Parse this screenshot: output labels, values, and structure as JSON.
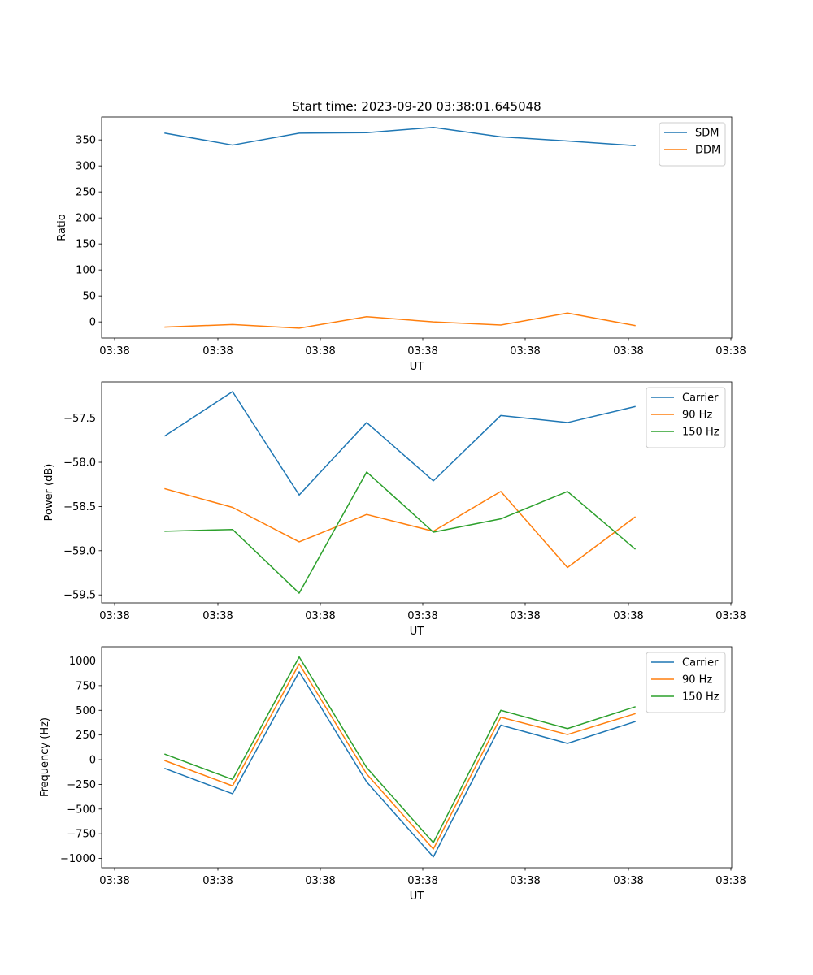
{
  "chart_data": [
    {
      "type": "line",
      "title": "Start time: 2023-09-20 03:38:01.645048",
      "xlabel": "UT",
      "ylabel": "Ratio",
      "xticks": [
        "03:38",
        "03:38",
        "03:38",
        "03:38",
        "03:38",
        "03:38",
        "03:38"
      ],
      "yticks": [
        0,
        50,
        100,
        150,
        200,
        250,
        300,
        350
      ],
      "ylim": [
        -31,
        394
      ],
      "legend": "top-right",
      "series": [
        {
          "name": "SDM",
          "color": "#1f77b4",
          "values": [
            363,
            340,
            363,
            364,
            374,
            356,
            348,
            339
          ]
        },
        {
          "name": "DDM",
          "color": "#ff7f0e",
          "values": [
            -10,
            -5,
            -12,
            10,
            0,
            -6,
            17,
            -7
          ]
        }
      ]
    },
    {
      "type": "line",
      "title": "",
      "xlabel": "UT",
      "ylabel": "Power (dB)",
      "xticks": [
        "03:38",
        "03:38",
        "03:38",
        "03:38",
        "03:38",
        "03:38",
        "03:38"
      ],
      "yticks": [
        -59.5,
        -59.0,
        -58.5,
        -58.0,
        -57.5
      ],
      "ytick_labels": [
        "−59.5",
        "−59.0",
        "−58.5",
        "−58.0",
        "−57.5"
      ],
      "ylim": [
        -59.59,
        -57.09
      ],
      "legend": "top-right",
      "series": [
        {
          "name": "Carrier",
          "color": "#1f77b4",
          "values": [
            -57.7,
            -57.2,
            -58.37,
            -57.55,
            -58.21,
            -57.47,
            -57.55,
            -57.37
          ]
        },
        {
          "name": "90 Hz",
          "color": "#ff7f0e",
          "values": [
            -58.3,
            -58.51,
            -58.9,
            -58.59,
            -58.78,
            -58.33,
            -59.19,
            -58.62
          ]
        },
        {
          "name": "150 Hz",
          "color": "#2ca02c",
          "values": [
            -58.78,
            -58.76,
            -59.48,
            -58.11,
            -58.79,
            -58.64,
            -58.33,
            -58.98
          ]
        }
      ]
    },
    {
      "type": "line",
      "title": "",
      "xlabel": "UT",
      "ylabel": "Frequency (Hz)",
      "xticks": [
        "03:38",
        "03:38",
        "03:38",
        "03:38",
        "03:38",
        "03:38",
        "03:38"
      ],
      "yticks": [
        -1000,
        -750,
        -500,
        -250,
        0,
        250,
        500,
        750,
        1000
      ],
      "ytick_labels": [
        "−1000",
        "−750",
        "−500",
        "−250",
        "0",
        "250",
        "500",
        "750",
        "1000"
      ],
      "ylim": [
        -1094,
        1144
      ],
      "legend": "top-right",
      "series": [
        {
          "name": "Carrier",
          "color": "#1f77b4",
          "values": [
            -90,
            -345,
            890,
            -225,
            -985,
            350,
            165,
            385
          ]
        },
        {
          "name": "90 Hz",
          "color": "#ff7f0e",
          "values": [
            -10,
            -265,
            970,
            -145,
            -905,
            430,
            255,
            465
          ]
        },
        {
          "name": "150 Hz",
          "color": "#2ca02c",
          "values": [
            55,
            -200,
            1040,
            -80,
            -840,
            500,
            315,
            535
          ]
        }
      ]
    }
  ]
}
